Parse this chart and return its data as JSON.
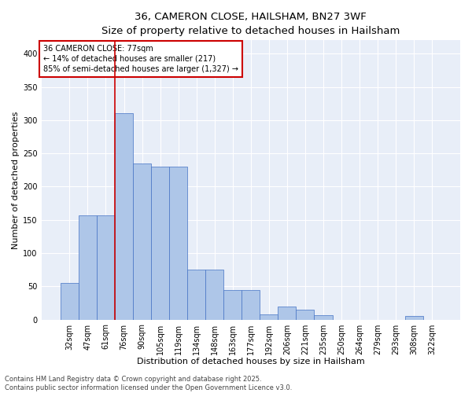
{
  "title_line1": "36, CAMERON CLOSE, HAILSHAM, BN27 3WF",
  "title_line2": "Size of property relative to detached houses in Hailsham",
  "xlabel": "Distribution of detached houses by size in Hailsham",
  "ylabel": "Number of detached properties",
  "footnote": "Contains HM Land Registry data © Crown copyright and database right 2025.\nContains public sector information licensed under the Open Government Licence v3.0.",
  "annotation_title": "36 CAMERON CLOSE: 77sqm",
  "annotation_line2": "← 14% of detached houses are smaller (217)",
  "annotation_line3": "85% of semi-detached houses are larger (1,327) →",
  "bar_labels": [
    "32sqm",
    "47sqm",
    "61sqm",
    "76sqm",
    "90sqm",
    "105sqm",
    "119sqm",
    "134sqm",
    "148sqm",
    "163sqm",
    "177sqm",
    "192sqm",
    "206sqm",
    "221sqm",
    "235sqm",
    "250sqm",
    "264sqm",
    "279sqm",
    "293sqm",
    "308sqm",
    "322sqm"
  ],
  "bar_values": [
    55,
    157,
    157,
    310,
    235,
    230,
    230,
    75,
    75,
    45,
    45,
    8,
    20,
    15,
    7,
    0,
    0,
    0,
    0,
    5,
    0
  ],
  "bar_color": "#aec6e8",
  "bar_edge_color": "#4472c4",
  "vline_color": "#cc0000",
  "vline_x_index": 3,
  "annotation_box_color": "#cc0000",
  "ylim": [
    0,
    420
  ],
  "yticks": [
    0,
    50,
    100,
    150,
    200,
    250,
    300,
    350,
    400
  ],
  "background_color": "#e8eef8",
  "grid_color": "#ffffff",
  "title_fontsize": 9.5,
  "subtitle_fontsize": 8.5,
  "axis_label_fontsize": 8,
  "tick_fontsize": 7,
  "annotation_fontsize": 7,
  "footnote_fontsize": 6
}
